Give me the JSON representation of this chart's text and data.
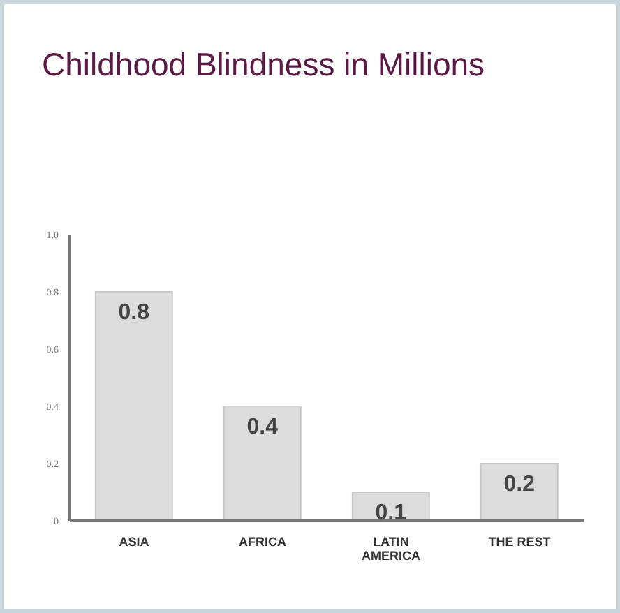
{
  "chart_data": {
    "type": "bar",
    "title": "Childhood Blindness in Millions",
    "categories": [
      "ASIA",
      "AFRICA",
      "LATIN AMERICA",
      "THE REST"
    ],
    "values": [
      0.8,
      0.4,
      0.1,
      0.2
    ],
    "color": "#dcdcdc",
    "ylim": [
      0,
      1
    ],
    "yticks": [
      0,
      0.2,
      0.4,
      0.6,
      0.8,
      {
        "value": 1,
        "label": "1.0"
      }
    ],
    "data_labels": true,
    "grid": false,
    "legend": false
  }
}
